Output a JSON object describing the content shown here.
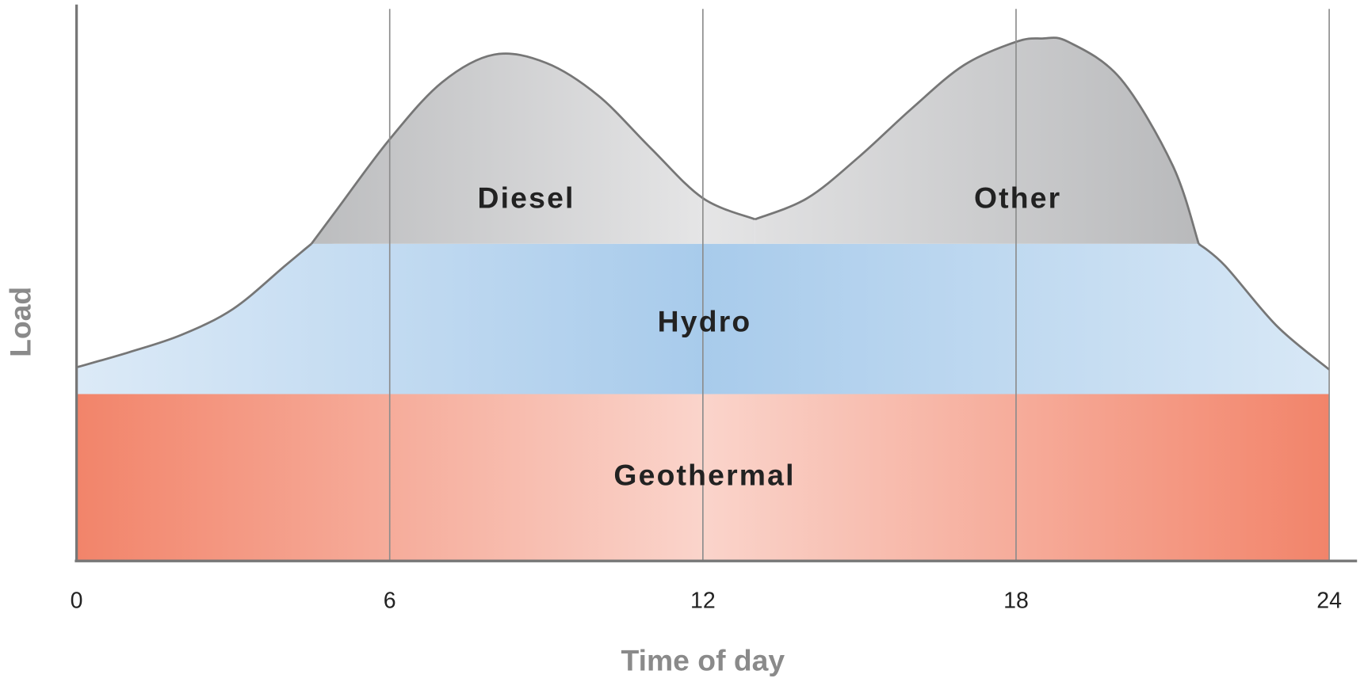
{
  "chart_data": {
    "type": "area",
    "x_label": "Time of day",
    "y_label": "Load",
    "x": [
      0,
      1,
      2,
      3,
      4,
      4.5,
      5,
      6,
      7,
      8,
      9,
      10,
      11,
      12,
      13,
      14,
      15,
      16,
      17,
      18,
      18.5,
      19,
      20,
      21,
      21.5,
      22,
      23,
      24
    ],
    "xlim": [
      0,
      24
    ],
    "xticks": [
      0,
      6,
      12,
      18,
      24
    ],
    "ylim": [
      0,
      100
    ],
    "grid": true,
    "series": [
      {
        "name": "Geothermal",
        "color": "#f2846a",
        "values": [
          30,
          30,
          30,
          30,
          30,
          30,
          30,
          30,
          30,
          30,
          30,
          30,
          30,
          30,
          30,
          30,
          30,
          30,
          30,
          30,
          30,
          30,
          30,
          30,
          30,
          30,
          30,
          30
        ]
      },
      {
        "name": "Hydro",
        "color": "#a8cbeb",
        "values": [
          4.8,
          7.5,
          10.6,
          15.3,
          23.1,
          27,
          27,
          27,
          27,
          27,
          27,
          27,
          27,
          27,
          27,
          27,
          27,
          27,
          27,
          27,
          27,
          27,
          27,
          27,
          27,
          23.1,
          12.2,
          4.4
        ]
      },
      {
        "name": "Diesel",
        "color": "#b4b5b7",
        "values": [
          null,
          null,
          null,
          null,
          null,
          0,
          6.3,
          18.8,
          29,
          34,
          32.5,
          26.6,
          17.2,
          8.2,
          4.4,
          null,
          null,
          null,
          null,
          null,
          null,
          null,
          null,
          null,
          null,
          null,
          null,
          null
        ]
      },
      {
        "name": "Other",
        "color": "#b4b5b7",
        "values": [
          null,
          null,
          null,
          null,
          null,
          null,
          null,
          null,
          null,
          null,
          null,
          null,
          null,
          null,
          4.4,
          8.2,
          15.7,
          24.3,
          32.1,
          36.3,
          36.9,
          36.3,
          29.7,
          14.1,
          0,
          null,
          null,
          null
        ]
      }
    ]
  }
}
